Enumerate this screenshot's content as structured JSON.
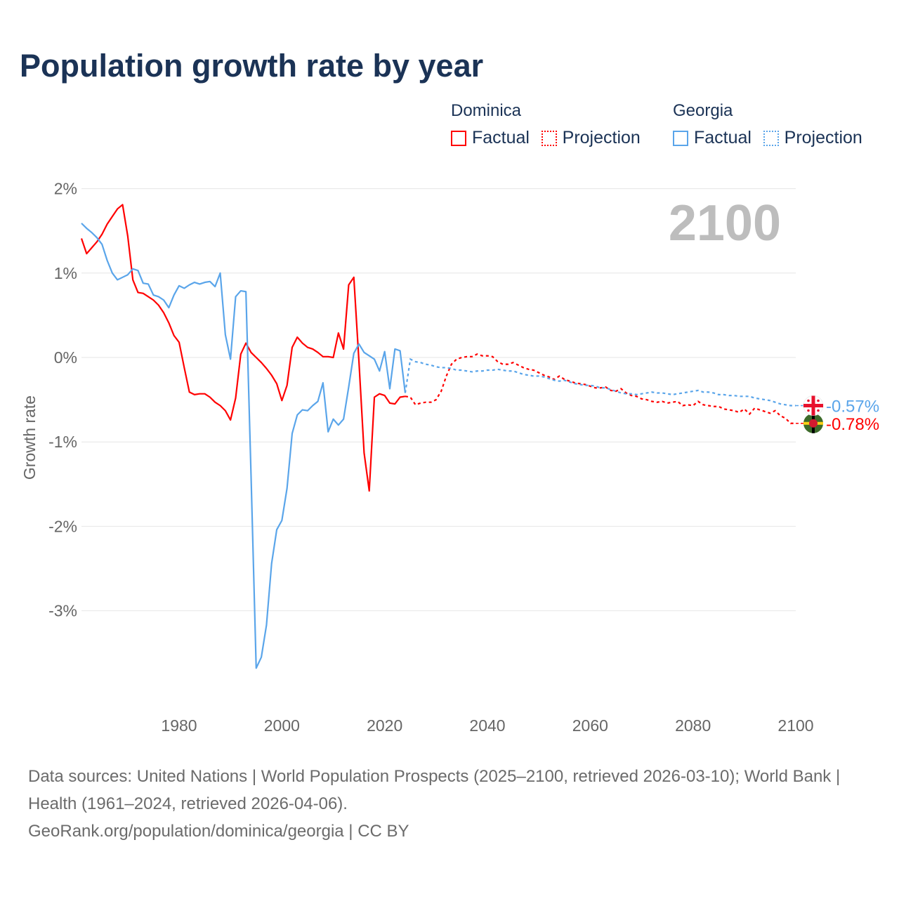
{
  "title": "Population growth rate by year",
  "legend": {
    "groups": [
      {
        "name": "Dominica",
        "color": "#ff0000",
        "factual": "Factual",
        "projection": "Projection"
      },
      {
        "name": "Georgia",
        "color": "#5aa5ea",
        "factual": "Factual",
        "projection": "Projection"
      }
    ]
  },
  "year_watermark": "2100",
  "footer": {
    "sources": "Data sources: United Nations | World Population Prospects (2025–2100, retrieved 2026-03-10); World Bank | Health (1961–2024, retrieved 2026-04-06).",
    "credit": "GeoRank.org/population/dominica/georgia | CC BY"
  },
  "chart_data": {
    "type": "line",
    "title": "Population growth rate by year",
    "xlabel": "",
    "ylabel": "Growth rate",
    "xlim": [
      1961,
      2100
    ],
    "ylim": [
      -4,
      2
    ],
    "x_ticks": [
      {
        "v": 1980,
        "label": "1980"
      },
      {
        "v": 2000,
        "label": "2000"
      },
      {
        "v": 2020,
        "label": "2020"
      },
      {
        "v": 2040,
        "label": "2040"
      },
      {
        "v": 2060,
        "label": "2060"
      },
      {
        "v": 2080,
        "label": "2080"
      },
      {
        "v": 2100,
        "label": "2100"
      }
    ],
    "y_ticks": [
      {
        "v": 2,
        "label": "2%"
      },
      {
        "v": 1,
        "label": "1%"
      },
      {
        "v": 0,
        "label": "0%"
      },
      {
        "v": -1,
        "label": "-1%"
      },
      {
        "v": -2,
        "label": "-2%"
      },
      {
        "v": -3,
        "label": "-3%"
      }
    ],
    "grid": true,
    "legend_position": "top-right",
    "series": [
      {
        "name": "Dominica",
        "color": "#ff0000",
        "end_label": "-0.78%",
        "factual": {
          "start_year": 1961,
          "values": [
            1.41,
            1.23,
            1.3,
            1.37,
            1.46,
            1.58,
            1.67,
            1.76,
            1.81,
            1.44,
            0.92,
            0.77,
            0.76,
            0.72,
            0.68,
            0.62,
            0.53,
            0.41,
            0.26,
            0.18,
            -0.12,
            -0.41,
            -0.44,
            -0.43,
            -0.43,
            -0.47,
            -0.53,
            -0.57,
            -0.63,
            -0.74,
            -0.48,
            0.04,
            0.17,
            0.06,
            0.0,
            -0.06,
            -0.13,
            -0.21,
            -0.31,
            -0.51,
            -0.33,
            0.12,
            0.24,
            0.17,
            0.12,
            0.1,
            0.06,
            0.01,
            0.01,
            0.0,
            0.29,
            0.1,
            0.86,
            0.95,
            -0.05,
            -1.13,
            -1.58,
            -0.47,
            -0.43,
            -0.45,
            -0.54,
            -0.55,
            -0.47,
            -0.46
          ]
        },
        "projection": {
          "start_year": 2025,
          "values": [
            -0.47,
            -0.56,
            -0.54,
            -0.53,
            -0.53,
            -0.5,
            -0.4,
            -0.22,
            -0.08,
            -0.02,
            0.0,
            0.01,
            0.01,
            0.04,
            0.02,
            0.02,
            0.01,
            -0.05,
            -0.08,
            -0.08,
            -0.06,
            -0.09,
            -0.12,
            -0.14,
            -0.15,
            -0.18,
            -0.21,
            -0.23,
            -0.26,
            -0.22,
            -0.26,
            -0.28,
            -0.3,
            -0.31,
            -0.32,
            -0.34,
            -0.36,
            -0.36,
            -0.35,
            -0.39,
            -0.4,
            -0.37,
            -0.42,
            -0.45,
            -0.46,
            -0.49,
            -0.5,
            -0.52,
            -0.53,
            -0.52,
            -0.54,
            -0.53,
            -0.52,
            -0.57,
            -0.56,
            -0.57,
            -0.52,
            -0.56,
            -0.57,
            -0.58,
            -0.58,
            -0.61,
            -0.62,
            -0.63,
            -0.65,
            -0.61,
            -0.67,
            -0.6,
            -0.62,
            -0.64,
            -0.66,
            -0.63,
            -0.69,
            -0.72,
            -0.78,
            -0.78
          ]
        }
      },
      {
        "name": "Georgia",
        "color": "#5aa5ea",
        "end_label": "-0.57%",
        "factual": {
          "start_year": 1961,
          "values": [
            1.59,
            1.53,
            1.48,
            1.42,
            1.34,
            1.15,
            1.0,
            0.92,
            0.95,
            0.98,
            1.05,
            1.03,
            0.88,
            0.87,
            0.74,
            0.72,
            0.68,
            0.59,
            0.74,
            0.85,
            0.82,
            0.86,
            0.89,
            0.87,
            0.89,
            0.9,
            0.84,
            1.0,
            0.27,
            -0.02,
            0.72,
            0.79,
            0.78,
            -1.4,
            -3.68,
            -3.55,
            -3.17,
            -2.44,
            -2.04,
            -1.93,
            -1.55,
            -0.9,
            -0.68,
            -0.62,
            -0.63,
            -0.57,
            -0.52,
            -0.3,
            -0.88,
            -0.73,
            -0.8,
            -0.73,
            -0.35,
            0.05,
            0.16,
            0.06,
            0.02,
            -0.02,
            -0.16,
            0.07,
            -0.37,
            0.1,
            0.08,
            -0.42
          ]
        },
        "projection": {
          "start_year": 2025,
          "values": [
            -0.02,
            -0.05,
            -0.06,
            -0.08,
            -0.09,
            -0.11,
            -0.12,
            -0.12,
            -0.13,
            -0.15,
            -0.15,
            -0.16,
            -0.17,
            -0.16,
            -0.16,
            -0.15,
            -0.15,
            -0.14,
            -0.15,
            -0.16,
            -0.16,
            -0.18,
            -0.2,
            -0.21,
            -0.22,
            -0.22,
            -0.23,
            -0.25,
            -0.27,
            -0.28,
            -0.27,
            -0.29,
            -0.31,
            -0.32,
            -0.33,
            -0.33,
            -0.34,
            -0.36,
            -0.36,
            -0.38,
            -0.4,
            -0.42,
            -0.43,
            -0.43,
            -0.44,
            -0.43,
            -0.42,
            -0.41,
            -0.42,
            -0.42,
            -0.43,
            -0.44,
            -0.43,
            -0.42,
            -0.41,
            -0.4,
            -0.39,
            -0.41,
            -0.41,
            -0.42,
            -0.44,
            -0.44,
            -0.45,
            -0.45,
            -0.46,
            -0.46,
            -0.46,
            -0.48,
            -0.49,
            -0.5,
            -0.51,
            -0.53,
            -0.55,
            -0.56,
            -0.57,
            -0.57
          ]
        }
      }
    ]
  }
}
